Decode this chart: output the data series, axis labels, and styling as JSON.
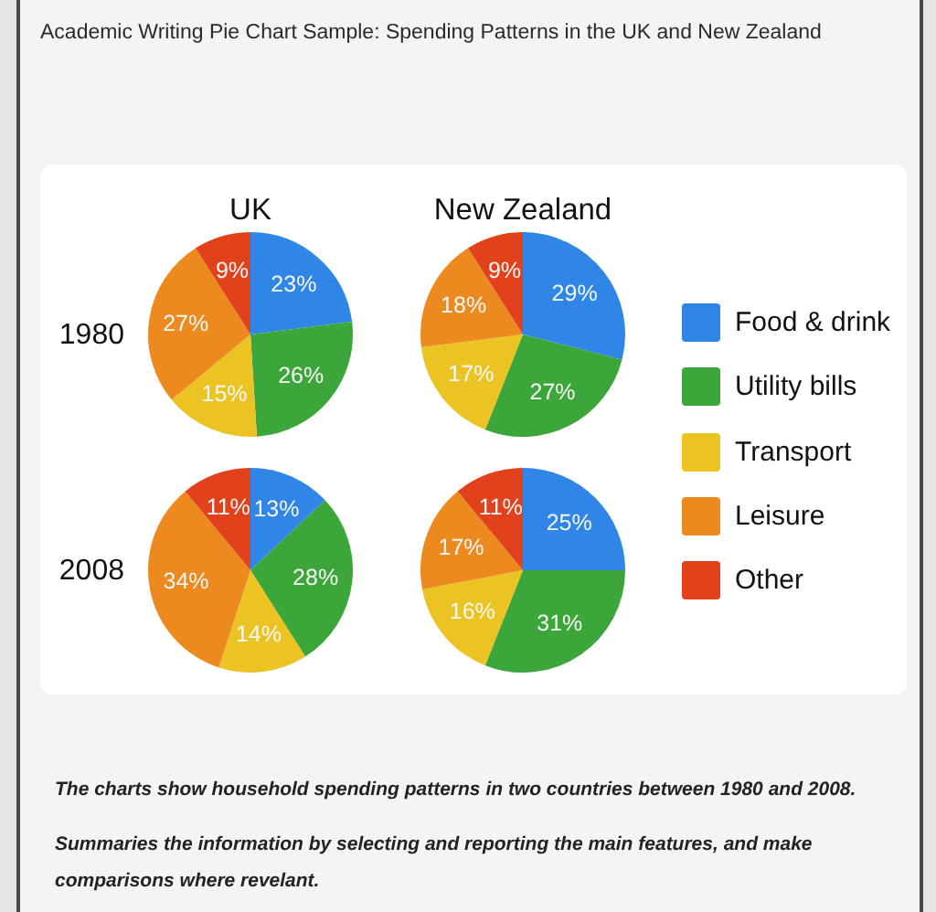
{
  "chart_data": [
    {
      "type": "other",
      "title": "Academic Writing Pie Chart Sample: Spending Patterns in the UK and New Zealand"
    },
    {
      "type": "pie",
      "title": "UK",
      "ylabel": "1980",
      "categories": [
        null,
        null,
        null,
        null,
        null
      ],
      "values": [
        23,
        26,
        15,
        27,
        9
      ],
      "colors": [
        "#2f86e6",
        "#3ca63a",
        "#ebc424",
        "#ec8a20",
        "#e1421b"
      ],
      "value_labels": [
        "23%",
        "26%",
        "15%",
        "27%",
        "9%"
      ]
    },
    {
      "type": "pie",
      "title": "New Zealand",
      "categories": [
        "Food & drink",
        "Utility bills",
        "Transport",
        "Leisure",
        "Other"
      ],
      "values": [
        29,
        27,
        17,
        18,
        9
      ],
      "colors": [
        "#2f86e6",
        "#3ca63a",
        "#ebc424",
        "#ec8a20",
        "#e1421b"
      ],
      "value_labels": [
        "29%",
        "27%",
        "17%",
        "18%",
        "9%"
      ],
      "legend": "right"
    },
    {
      "type": "pie",
      "ylabel": "2008",
      "categories": [
        null,
        null,
        null,
        null,
        null
      ],
      "values": [
        13,
        28,
        14,
        34,
        11
      ],
      "colors": [
        "#2f86e6",
        "#3ca63a",
        "#ebc424",
        "#ec8a20",
        "#e1421b"
      ],
      "value_labels": [
        "13%",
        "28%",
        "14%",
        "34%",
        "11%"
      ]
    },
    {
      "type": "pie",
      "categories": [
        null,
        null,
        null,
        null,
        null
      ],
      "values": [
        25,
        31,
        16,
        17,
        11
      ],
      "colors": [
        "#2f86e6",
        "#3ca63a",
        "#ebc424",
        "#ec8a20",
        "#e1421b"
      ],
      "value_labels": [
        "25%",
        "31%",
        "16%",
        "17%",
        "11%"
      ]
    },
    {
      "type": "other",
      "annotations": [
        "The charts show household spending patterns in two countries between 1980 and 2008.",
        "Summaries the information by selecting and reporting the main features, and make comparisons where revelant."
      ]
    }
  ]
}
